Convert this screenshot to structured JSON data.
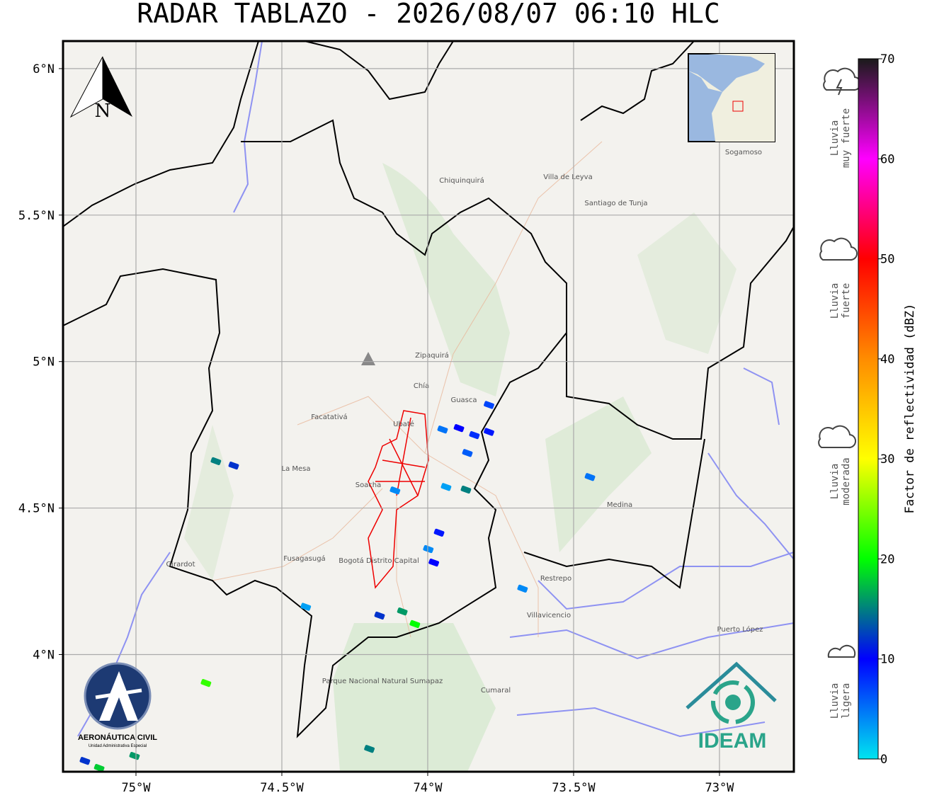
{
  "chart_data": {
    "type": "radar-map",
    "title": "RADAR TABLAZO - 2026/08/07 06:10 HLC",
    "xlim": [
      -75.25,
      -72.745
    ],
    "ylim": [
      3.6,
      6.094
    ],
    "xticks": [
      {
        "value": -75,
        "label": "75°W"
      },
      {
        "value": -74.5,
        "label": "74.5°W"
      },
      {
        "value": -74,
        "label": "74°W"
      },
      {
        "value": -73.5,
        "label": "73.5°W"
      },
      {
        "value": -73,
        "label": "73°W"
      }
    ],
    "yticks": [
      {
        "value": 4,
        "label": "4°N"
      },
      {
        "value": 4.5,
        "label": "4.5°N"
      },
      {
        "value": 5,
        "label": "5°N"
      },
      {
        "value": 5.5,
        "label": "5.5°N"
      },
      {
        "value": 6,
        "label": "6°N"
      }
    ],
    "grid": true,
    "north_label": "N",
    "colorbar": {
      "label": "Factor de reflectividad (dBZ)",
      "lim": [
        0,
        70
      ],
      "ticks": [
        0,
        10,
        20,
        30,
        40,
        50,
        60,
        70
      ],
      "colors": [
        "#00e5f0",
        "#0000ff",
        "#00ff00",
        "#ffff00",
        "#ff8c00",
        "#ff0000",
        "#ff00ff",
        "#1a1a1a"
      ]
    },
    "intensity_labels": [
      [
        "Lluvia",
        "muy fuerte"
      ],
      [
        "Lluvia",
        "fuerte"
      ],
      [
        "Lluvia",
        "moderada"
      ],
      [
        "Lluvia",
        "ligera"
      ]
    ],
    "echoes": {
      "lon": [
        -74.726,
        -74.665,
        -73.949,
        -73.893,
        -73.84,
        -73.79,
        -73.864,
        -73.79,
        -73.937,
        -73.869,
        -74.112,
        -73.961,
        -73.998,
        -73.979,
        -74.165,
        -74.087,
        -74.044,
        -74.76,
        -75.175,
        -75.126,
        -75.005,
        -74.2,
        -73.444,
        -73.675,
        -74.418
      ],
      "lat": [
        4.66,
        4.645,
        4.768,
        4.773,
        4.749,
        4.76,
        4.688,
        4.852,
        4.572,
        4.563,
        4.56,
        4.416,
        4.36,
        4.314,
        4.133,
        4.147,
        4.104,
        3.903,
        3.637,
        3.613,
        3.654,
        3.678,
        4.606,
        4.225,
        4.163
      ],
      "dbz": [
        15,
        12,
        5,
        10,
        8,
        9,
        6,
        7,
        3,
        15,
        4,
        9,
        4,
        10,
        12,
        16,
        20,
        22,
        12,
        18,
        16,
        15,
        5,
        4,
        3
      ]
    },
    "places": [
      "Villavicencio",
      "Bogotá Distrito Capital",
      "Parque Nacional Natural Sumapaz",
      "Zipaquirá",
      "Villa de Leyva",
      "Santiago de Tunja",
      "Sogamoso",
      "Fusagasugá",
      "Girardot",
      "Chía",
      "Soacha",
      "Facatativá",
      "La Mesa",
      "Ubaté",
      "Chiquinquirá",
      "Medina",
      "Puerto López",
      "Restrepo",
      "Cumaral",
      "Guasca"
    ],
    "logos": {
      "aerocivil": "AERONÁUTICA CIVIL",
      "aerocivil_sub": "Unidad Administrativa Especial",
      "ideam": "IDEAM"
    }
  }
}
